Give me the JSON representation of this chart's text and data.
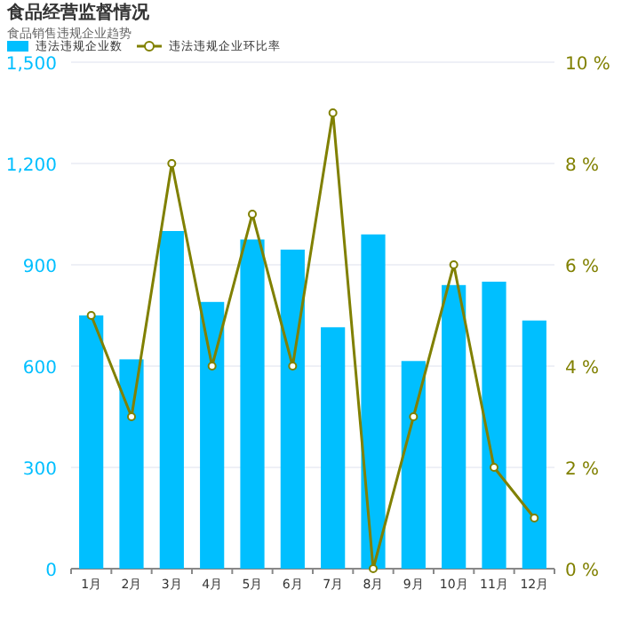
{
  "chart_data": {
    "type": "bar",
    "title": "食品经营监督情况",
    "subtitle": "食品销售违规企业趋势",
    "categories": [
      "1月",
      "2月",
      "3月",
      "4月",
      "5月",
      "6月",
      "7月",
      "8月",
      "9月",
      "10月",
      "11月",
      "12月"
    ],
    "series": [
      {
        "name": "违法违规企业数",
        "color": "#00bfff",
        "values": [
          750,
          620,
          1000,
          790,
          975,
          945,
          715,
          990,
          615,
          840,
          850,
          735
        ]
      },
      {
        "name": "违法违规企业环比率",
        "type": "line",
        "axis": "y2",
        "color": "#808000",
        "marker": "circle",
        "values": [
          5,
          3,
          8,
          4,
          7,
          4,
          9,
          0,
          3,
          6,
          2,
          1
        ]
      }
    ],
    "ylim": [
      0,
      1500
    ],
    "yticks": [
      0,
      {
        "value": 300,
        "label": "300"
      },
      {
        "value": 600,
        "label": "600"
      },
      {
        "value": 900,
        "label": "900"
      },
      {
        "value": 1200,
        "label": "1,200"
      },
      {
        "value": 1500,
        "label": "1,500"
      }
    ],
    "y2lim": [
      0,
      10
    ],
    "y2ticks": [
      {
        "value": 0,
        "label": "0 %"
      },
      {
        "value": 2,
        "label": "2 %"
      },
      {
        "value": 4,
        "label": "4 %"
      },
      {
        "value": 6,
        "label": "6 %"
      },
      {
        "value": 8,
        "label": "8 %"
      },
      {
        "value": 10,
        "label": "10 %"
      }
    ],
    "grid": "y",
    "legend": "top left"
  }
}
